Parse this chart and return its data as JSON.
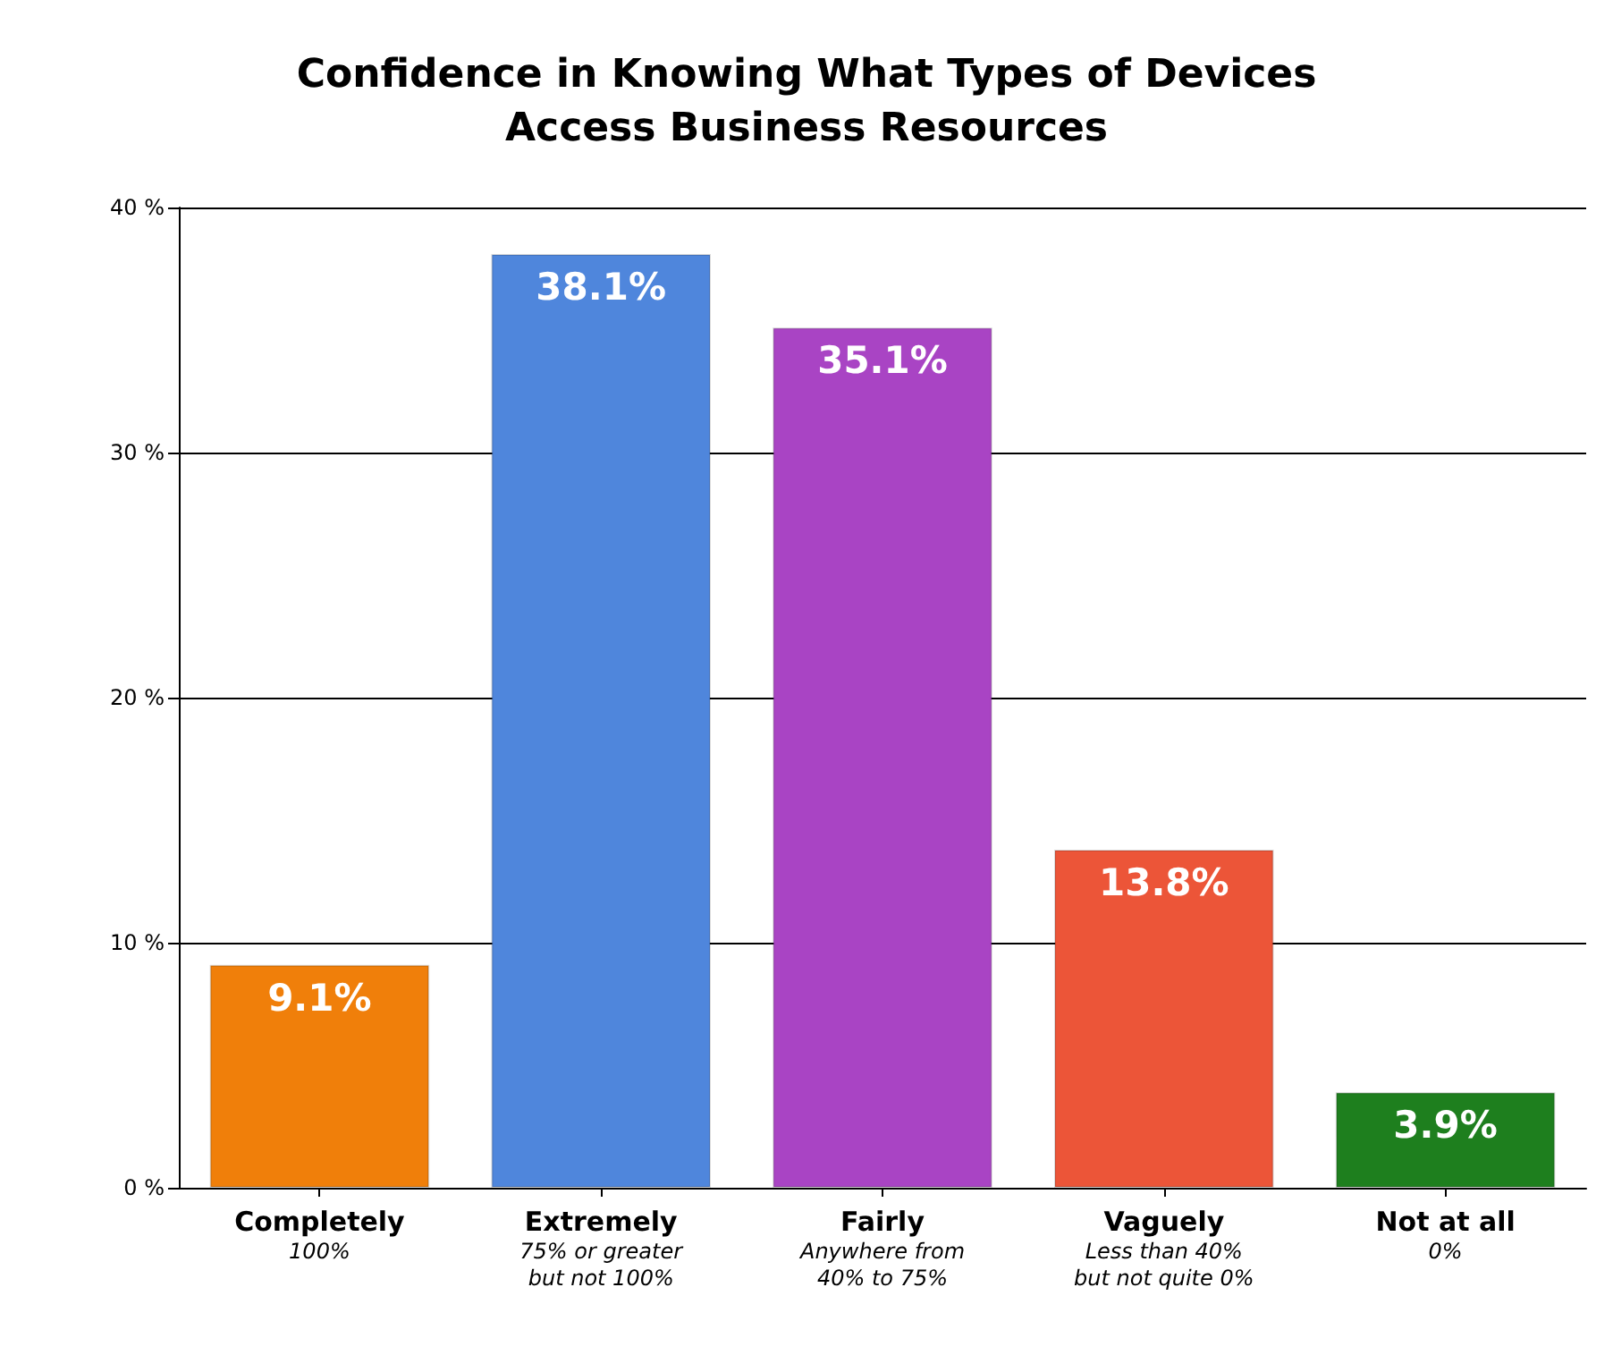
{
  "chart_data": {
    "type": "bar",
    "title": "Confidence in Knowing What Types of Devices\nAccess Business Resources",
    "categories": [
      "Completely\n100%",
      "Extremely\n75% or greater\nbut not 100%",
      "Fairly\nAnywhere from\n40% to 75%",
      "Vaguely\nLess than 40%\nbut not quite 0%",
      "Not at all\n0%"
    ],
    "values": [
      9.1,
      38.1,
      35.1,
      13.8,
      3.9
    ],
    "colors": [
      "#f07f0a",
      "#4f86dc",
      "#a944c4",
      "#ec5538",
      "#1e7f1e"
    ],
    "value_labels": [
      "9.1%",
      "38.1%",
      "35.1%",
      "13.8%",
      "3.9%"
    ],
    "ylim": [
      0,
      40
    ],
    "yticks": [
      {
        "value": 0,
        "label": "0 %"
      },
      {
        "value": 10,
        "label": "10 %"
      },
      {
        "value": 20,
        "label": "20 %"
      },
      {
        "value": 30,
        "label": "30 %"
      },
      {
        "value": 40,
        "label": "40 %"
      }
    ],
    "grid": "y"
  }
}
